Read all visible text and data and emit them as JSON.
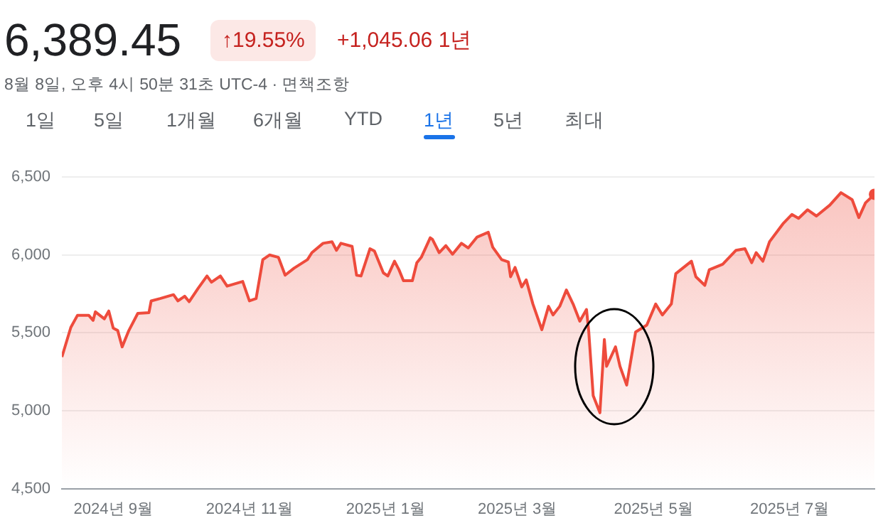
{
  "chart_data": {
    "type": "area",
    "title": "6,389.45",
    "subtitle": "8월 8일, 오후 4시 50분 31초 UTC-4 · 면책조항",
    "annotations": [
      "↑19.55%",
      "+1,045.06 1년",
      "1일",
      "5일",
      "1개월",
      "6개월",
      "YTD",
      "1년",
      "5년",
      "최대"
    ],
    "x": [
      "2024-08-09",
      "2024-08-13",
      "2024-08-16",
      "2024-08-21",
      "2024-08-23",
      "2024-08-24",
      "2024-08-28",
      "2024-08-30",
      "2024-09-01",
      "2024-09-03",
      "2024-09-05",
      "2024-09-08",
      "2024-09-12",
      "2024-09-17",
      "2024-09-18",
      "2024-09-22",
      "2024-09-28",
      "2024-09-30",
      "2024-10-03",
      "2024-10-05",
      "2024-10-09",
      "2024-10-13",
      "2024-10-15",
      "2024-10-19",
      "2024-10-22",
      "2024-10-29",
      "2024-11-01",
      "2024-11-04",
      "2024-11-07",
      "2024-11-10",
      "2024-11-14",
      "2024-11-17",
      "2024-11-21",
      "2024-11-27",
      "2024-11-29",
      "2024-12-04",
      "2024-12-08",
      "2024-12-10",
      "2024-12-12",
      "2024-12-17",
      "2024-12-19",
      "2024-12-21",
      "2024-12-25",
      "2024-12-27",
      "2024-12-31",
      "2025-01-02",
      "2025-01-05",
      "2025-01-07",
      "2025-01-09",
      "2025-01-13",
      "2025-01-15",
      "2025-01-17",
      "2025-01-21",
      "2025-01-22",
      "2025-01-25",
      "2025-01-28",
      "2025-01-31",
      "2025-02-04",
      "2025-02-07",
      "2025-02-11",
      "2025-02-16",
      "2025-02-18",
      "2025-02-22",
      "2025-02-25",
      "2025-02-26",
      "2025-02-28",
      "2025-03-03",
      "2025-03-05",
      "2025-03-08",
      "2025-03-12",
      "2025-03-15",
      "2025-03-17",
      "2025-03-20",
      "2025-03-23",
      "2025-03-26",
      "2025-03-29",
      "2025-04-01",
      "2025-04-02",
      "2025-04-04",
      "2025-04-07",
      "2025-04-09",
      "2025-04-10",
      "2025-04-14",
      "2025-04-16",
      "2025-04-19",
      "2025-04-23",
      "2025-04-28",
      "2025-05-02",
      "2025-05-05",
      "2025-05-09",
      "2025-05-11",
      "2025-05-18",
      "2025-05-20",
      "2025-05-24",
      "2025-05-26",
      "2025-06-01",
      "2025-06-07",
      "2025-06-11",
      "2025-06-14",
      "2025-06-16",
      "2025-06-19",
      "2025-06-22",
      "2025-06-28",
      "2025-07-02",
      "2025-07-05",
      "2025-07-09",
      "2025-07-13",
      "2025-07-19",
      "2025-07-24",
      "2025-07-29",
      "2025-08-01",
      "2025-08-04",
      "2025-08-08"
    ],
    "series": [
      {
        "color": "#ee4b3c",
        "values": [
          5345,
          5535,
          5613,
          5613,
          5580,
          5635,
          5590,
          5640,
          5530,
          5515,
          5410,
          5515,
          5625,
          5630,
          5705,
          5720,
          5745,
          5705,
          5735,
          5700,
          5785,
          5865,
          5825,
          5865,
          5800,
          5830,
          5705,
          5720,
          5970,
          6000,
          5985,
          5870,
          5915,
          5970,
          6015,
          6075,
          6085,
          6030,
          6075,
          6055,
          5870,
          5865,
          6040,
          6025,
          5885,
          5865,
          5960,
          5905,
          5835,
          5835,
          5950,
          5985,
          6110,
          6100,
          6015,
          6060,
          6005,
          6075,
          6045,
          6115,
          6146,
          6050,
          5970,
          5955,
          5860,
          5920,
          5795,
          5840,
          5685,
          5520,
          5670,
          5615,
          5670,
          5775,
          5685,
          5575,
          5650,
          5510,
          5097,
          4987,
          5457,
          5285,
          5410,
          5285,
          5165,
          5505,
          5550,
          5685,
          5615,
          5685,
          5880,
          5960,
          5860,
          5805,
          5905,
          5940,
          6030,
          6040,
          5950,
          6015,
          5960,
          6085,
          6200,
          6260,
          6235,
          6290,
          6250,
          6320,
          6400,
          6355,
          6240,
          6335,
          6389.45
        ]
      }
    ],
    "xlim": [
      "2024-08-09",
      "2025-08-08"
    ],
    "xticks": [
      {
        "value": "2024-09-01",
        "label": "2024년 9월"
      },
      {
        "value": "2024-11-01",
        "label": "2024년 11월"
      },
      {
        "value": "2025-01-01",
        "label": "2025년 1월"
      },
      {
        "value": "2025-03-01",
        "label": "2025년 3월"
      },
      {
        "value": "2025-05-01",
        "label": "2025년 5월"
      },
      {
        "value": "2025-07-01",
        "label": "2025년 7월"
      }
    ],
    "ylim": [
      4500,
      6500
    ],
    "yticks": [
      {
        "value": 4500,
        "label": "4,500"
      },
      {
        "value": 5000,
        "label": "5,000"
      },
      {
        "value": 5500,
        "label": "5,500"
      },
      {
        "value": 6000,
        "label": "6,000"
      },
      {
        "value": 6500,
        "label": "6,500"
      }
    ],
    "grid": "y",
    "legend": false
  }
}
